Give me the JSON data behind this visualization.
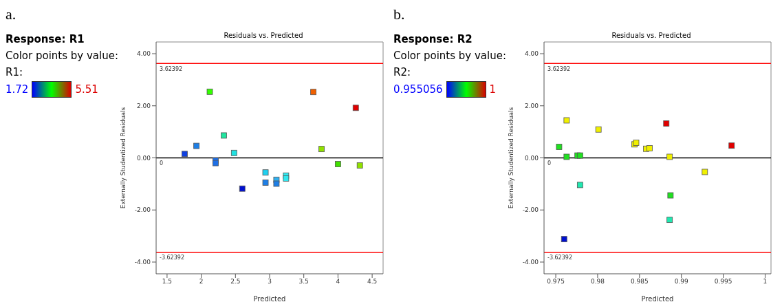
{
  "chart_data": [
    {
      "type": "scatter",
      "title": "Residuals vs. Predicted",
      "subtitle": "Response: R1",
      "annotations": [
        "a.",
        "Color points by value:",
        "R1:",
        "1.72",
        "5.51"
      ],
      "xlabel": "Predicted",
      "ylabel": "Externally Studentized Residuals",
      "marker": "square",
      "grid": false,
      "legend": false,
      "x": [
        1.757,
        1.93,
        2.125,
        2.21,
        2.21,
        2.33,
        2.48,
        2.6,
        2.94,
        2.94,
        3.1,
        3.1,
        3.24,
        3.24,
        3.64,
        3.76,
        4.0,
        4.26,
        4.32
      ],
      "values": [
        0.15,
        0.46,
        2.54,
        -0.1,
        -0.2,
        0.86,
        0.19,
        -1.18,
        -0.56,
        -0.95,
        -0.84,
        -0.99,
        -0.68,
        -0.79,
        2.53,
        0.34,
        -0.24,
        1.92,
        -0.29
      ],
      "colors": [
        "#1040e0",
        "#1e7fe6",
        "#33ff00",
        "#1e6fe6",
        "#1e6fe6",
        "#20e6a0",
        "#20e0e0",
        "#0010d0",
        "#20d0f0",
        "#1e7fe6",
        "#30b0f0",
        "#1e7fe6",
        "#30e8f0",
        "#30e8f0",
        "#f06000",
        "#90e000",
        "#40e000",
        "#e00000",
        "#90e000"
      ],
      "xlim": [
        1.34,
        4.66
      ],
      "xticks": [
        1.5,
        2,
        2.5,
        3,
        3.5,
        4,
        4.5
      ],
      "ylim": [
        -4.45,
        4.45
      ],
      "yticks": [
        {
          "value": -4,
          "label": "-4.00"
        },
        {
          "value": -2,
          "label": "-2.00"
        },
        {
          "value": 0,
          "label": "0.00"
        },
        {
          "value": 2,
          "label": "2.00"
        },
        {
          "value": 4,
          "label": "4.00"
        }
      ],
      "ref_lines": [
        {
          "axis": "y",
          "value": 3.62392,
          "label": "3.62392",
          "color": "#ff0000"
        },
        {
          "axis": "y",
          "value": 0,
          "label": "0",
          "color": "#000000"
        },
        {
          "axis": "y",
          "value": -3.62392,
          "label": "-3.62392",
          "color": "#ff0000"
        }
      ]
    },
    {
      "type": "scatter",
      "title": "Residuals vs. Predicted",
      "subtitle": "Response: R2",
      "annotations": [
        "b.",
        "Color points by value:",
        "R2:",
        "0.955056",
        "1"
      ],
      "xlabel": "Predicted",
      "ylabel": "Externally Studentized Residuals",
      "marker": "square",
      "grid": false,
      "legend": false,
      "x": [
        0.9754,
        0.9763,
        0.9763,
        0.976,
        0.9776,
        0.9779,
        0.9779,
        0.9801,
        0.9844,
        0.9846,
        0.9858,
        0.9862,
        0.9882,
        0.9886,
        0.9887,
        0.9886,
        0.9928,
        0.996
      ],
      "values": [
        0.42,
        1.44,
        0.04,
        -3.12,
        0.09,
        0.09,
        -1.04,
        1.09,
        0.52,
        0.58,
        0.35,
        0.37,
        1.32,
        0.04,
        -1.44,
        -2.38,
        -0.54,
        0.47
      ],
      "colors": [
        "#20e020",
        "#f0f000",
        "#20e020",
        "#0010d0",
        "#20e020",
        "#20e020",
        "#20e8b0",
        "#f0f000",
        "#f0f000",
        "#f0f000",
        "#f0f000",
        "#f0f000",
        "#e00000",
        "#f0f000",
        "#20e020",
        "#20e8b0",
        "#f0f000",
        "#e00000"
      ],
      "xlim": [
        0.9736,
        1.0007
      ],
      "xticks": [
        0.975,
        0.98,
        0.985,
        0.99,
        0.995,
        1
      ],
      "ylim": [
        -4.45,
        4.45
      ],
      "yticks": [
        {
          "value": -4,
          "label": "-4.00"
        },
        {
          "value": -2,
          "label": "-2.00"
        },
        {
          "value": 0,
          "label": "0.00"
        },
        {
          "value": 2,
          "label": "2.00"
        },
        {
          "value": 4,
          "label": "4.00"
        }
      ],
      "ref_lines": [
        {
          "axis": "y",
          "value": 3.62392,
          "label": "3.62392",
          "color": "#ff0000"
        },
        {
          "axis": "y",
          "value": 0,
          "label": "0",
          "color": "#000000"
        },
        {
          "axis": "y",
          "value": -3.62392,
          "label": "-3.62392",
          "color": "#ff0000"
        }
      ]
    }
  ]
}
